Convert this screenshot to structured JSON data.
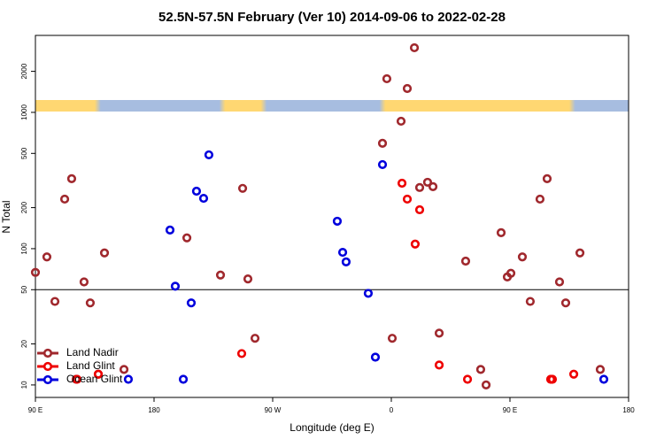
{
  "chart_data": {
    "type": "scatter",
    "title": "52.5N-57.5N February (Ver 10)   2014-09-06 to 2022-02-28",
    "x_label": "Longitude (deg E)",
    "y_label": "N Total",
    "xlim": [
      -270,
      180
    ],
    "xticks": [
      {
        "value": -270,
        "label": "90 E"
      },
      {
        "value": -180,
        "label": "180"
      },
      {
        "value": -90,
        "label": "90 W"
      },
      0,
      {
        "value": 90,
        "label": "90 E"
      },
      180
    ],
    "ylim": [
      8.1,
      3670
    ],
    "log_y": true,
    "yticks": [
      10,
      20,
      50,
      100,
      200,
      500,
      1000,
      2000
    ],
    "hline": 50,
    "legend": "bottom-left",
    "series": [
      {
        "name": "Land Nadir",
        "color": "#a0282d",
        "x": [
          -270,
          -261.3,
          -255.2,
          -247.8,
          -242.5,
          -239.1,
          -233.1,
          -228.4,
          -222.3,
          -217.6,
          -202.8,
          -155.1,
          -129.6,
          -112.8,
          -108.8,
          -103.4,
          -6.7,
          -3.4,
          0.7,
          7.4,
          12.1,
          17.5,
          21.5,
          27.5,
          31.6,
          36.3,
          56.4,
          67.8,
          71.9,
          83.3,
          88,
          90.7,
          99.4,
          105.4,
          112.8,
          118.2,
          127.6,
          132.3,
          143.1,
          158.5
        ],
        "values": [
          67,
          87,
          41,
          231,
          326,
          11,
          57,
          40,
          12,
          93,
          13,
          120,
          64,
          277,
          60,
          22,
          593,
          1765,
          22,
          861,
          1497,
          2979,
          281,
          307,
          285,
          24,
          81,
          13,
          10,
          131,
          62,
          66,
          87,
          41,
          231,
          326,
          57,
          40,
          93,
          13
        ]
      },
      {
        "name": "Land Glint",
        "color": "#ee0000",
        "x": [
          -238.4,
          -222.3,
          -113.5,
          8.1,
          12.1,
          18.1,
          21.5,
          36.3,
          57.8,
          120.9,
          122.2,
          138.4
        ],
        "values": [
          11,
          12,
          17,
          302,
          231,
          108,
          193,
          14,
          11,
          11,
          11,
          12
        ]
      },
      {
        "name": "Ocean Glint",
        "color": "#0000dd",
        "x": [
          -199.5,
          -167.9,
          -163.9,
          -157.8,
          -151.8,
          -147.8,
          -142.4,
          -138.4,
          -41,
          -36.9,
          -34.3,
          -17.5,
          -12.1,
          -6.7,
          161.2
        ],
        "values": [
          11,
          137,
          53,
          11,
          40,
          264,
          234,
          488,
          159,
          94,
          80,
          47,
          16,
          414,
          11
        ]
      }
    ]
  }
}
